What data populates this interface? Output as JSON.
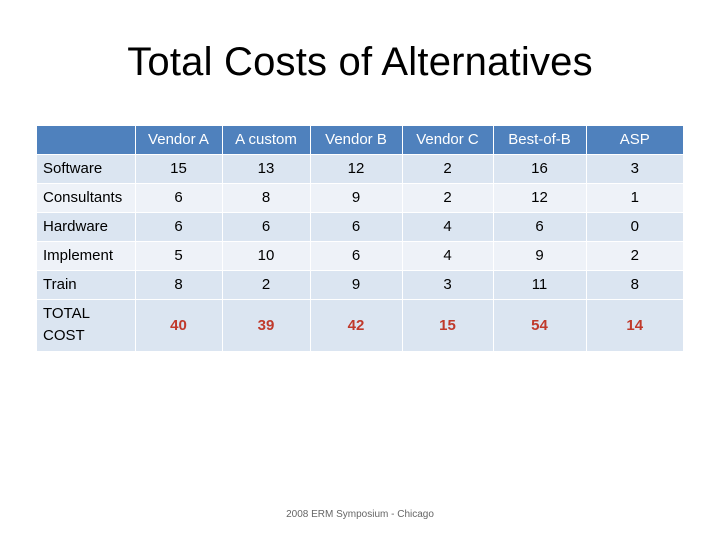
{
  "slide": {
    "title": "Total Costs of Alternatives",
    "footer": "2008 ERM Symposium - Chicago"
  },
  "table": {
    "headers": [
      "",
      "Vendor A",
      "A custom",
      "Vendor B",
      "Vendor C",
      "Best-of-B",
      "ASP"
    ],
    "rows": [
      {
        "label": "Software",
        "values": [
          "15",
          "13",
          "12",
          "2",
          "16",
          "3"
        ]
      },
      {
        "label": "Consultants",
        "values": [
          "6",
          "8",
          "9",
          "2",
          "12",
          "1"
        ]
      },
      {
        "label": "Hardware",
        "values": [
          "6",
          "6",
          "6",
          "4",
          "6",
          "0"
        ]
      },
      {
        "label": "Implement",
        "values": [
          "5",
          "10",
          "6",
          "4",
          "9",
          "2"
        ]
      },
      {
        "label": "Train",
        "values": [
          "8",
          "2",
          "9",
          "3",
          "11",
          "8"
        ]
      }
    ],
    "total": {
      "label_line1": "TOTAL",
      "label_line2": "COST",
      "values": [
        "40",
        "39",
        "42",
        "15",
        "54",
        "14"
      ]
    }
  },
  "colors": {
    "header_bg": "#4f81bd",
    "row_band_a": "#dbe5f1",
    "row_band_b": "#eef2f8",
    "total_text": "#c0392b"
  }
}
